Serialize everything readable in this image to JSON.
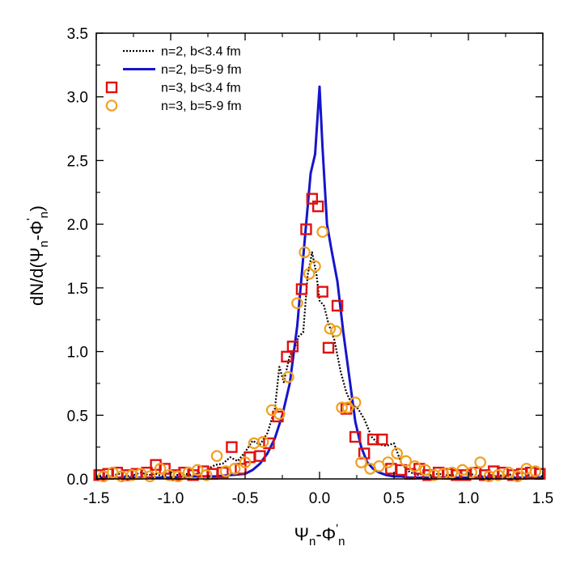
{
  "chart_data": {
    "type": "scatter",
    "xlabel": {
      "base": "Ψ",
      "sub1": "n",
      "mid": "-Φ",
      "sup": "'",
      "sub2": "n"
    },
    "ylabel": {
      "pre": "dN/d(Ψ",
      "sub1": "n",
      "mid": "-Φ",
      "sup": "'",
      "sub2": "n",
      "post": ")"
    },
    "xlim": [
      -1.5,
      1.5
    ],
    "ylim": [
      0.0,
      3.5
    ],
    "x_ticks": [
      "-1.5",
      "-1.0",
      "-0.5",
      "0.0",
      "0.5",
      "1.0",
      "1.5"
    ],
    "y_ticks": [
      "0.0",
      "0.5",
      "1.0",
      "1.5",
      "2.0",
      "2.5",
      "3.0",
      "3.5"
    ],
    "grid": false,
    "legend_position": "top-left",
    "series": [
      {
        "name": "n=2, b<3.4 fm",
        "style": "dotted-line",
        "color": "#000000",
        "x": [
          -1.5,
          -1.45,
          -1.4,
          -1.35,
          -1.3,
          -1.25,
          -1.2,
          -1.15,
          -1.1,
          -1.05,
          -1.0,
          -0.95,
          -0.9,
          -0.85,
          -0.8,
          -0.75,
          -0.7,
          -0.65,
          -0.6,
          -0.55,
          -0.5,
          -0.45,
          -0.4,
          -0.35,
          -0.3,
          -0.27,
          -0.24,
          -0.2,
          -0.17,
          -0.14,
          -0.11,
          -0.08,
          -0.05,
          -0.02,
          0.0,
          0.03,
          0.06,
          0.1,
          0.14,
          0.18,
          0.22,
          0.26,
          0.3,
          0.35,
          0.4,
          0.45,
          0.5,
          0.55,
          0.6,
          0.65,
          0.7,
          0.75,
          0.8,
          0.85,
          0.9,
          0.95,
          1.0,
          1.05,
          1.1,
          1.15,
          1.2,
          1.25,
          1.3,
          1.35,
          1.4,
          1.45,
          1.5
        ],
        "values": [
          0.02,
          0.03,
          0.02,
          0.04,
          0.02,
          0.03,
          0.05,
          0.03,
          0.04,
          0.02,
          0.05,
          0.03,
          0.04,
          0.03,
          0.05,
          0.08,
          0.11,
          0.12,
          0.17,
          0.14,
          0.21,
          0.3,
          0.27,
          0.36,
          0.55,
          0.88,
          0.76,
          0.97,
          1.02,
          1.12,
          1.15,
          1.6,
          1.78,
          1.6,
          1.4,
          1.36,
          1.22,
          1.09,
          0.85,
          0.68,
          0.58,
          0.55,
          0.47,
          0.33,
          0.27,
          0.26,
          0.28,
          0.12,
          0.06,
          0.03,
          0.04,
          0.03,
          0.04,
          0.03,
          0.03,
          0.03,
          0.04,
          0.03,
          0.02,
          0.03,
          0.02,
          0.04,
          0.03,
          0.05,
          0.03,
          0.03,
          0.02
        ]
      },
      {
        "name": "n=2, b=5-9 fm",
        "style": "solid-line",
        "color": "#1515cc",
        "x": [
          -1.5,
          -1.4,
          -1.3,
          -1.2,
          -1.1,
          -1.0,
          -0.9,
          -0.8,
          -0.7,
          -0.6,
          -0.5,
          -0.45,
          -0.4,
          -0.35,
          -0.3,
          -0.25,
          -0.2,
          -0.15,
          -0.12,
          -0.09,
          -0.06,
          -0.03,
          0.0,
          0.02,
          0.05,
          0.08,
          0.12,
          0.16,
          0.2,
          0.24,
          0.28,
          0.32,
          0.36,
          0.4,
          0.45,
          0.5,
          0.55,
          0.6,
          0.7,
          0.8,
          0.9,
          1.0,
          1.1,
          1.2,
          1.3,
          1.4,
          1.5
        ],
        "values": [
          0.01,
          0.01,
          0.01,
          0.01,
          0.01,
          0.01,
          0.02,
          0.02,
          0.02,
          0.03,
          0.04,
          0.07,
          0.12,
          0.2,
          0.32,
          0.5,
          0.75,
          1.2,
          1.6,
          2.0,
          2.4,
          2.55,
          3.08,
          2.6,
          2.0,
          1.8,
          1.55,
          1.15,
          0.8,
          0.45,
          0.25,
          0.13,
          0.08,
          0.05,
          0.03,
          0.02,
          0.02,
          0.01,
          0.01,
          0.01,
          0.01,
          0.01,
          0.01,
          0.01,
          0.01,
          0.01,
          0.01
        ]
      },
      {
        "name": "n=3, b<3.4 fm",
        "style": "open-square",
        "color": "#e01010",
        "x": [
          -1.48,
          -1.42,
          -1.36,
          -1.29,
          -1.23,
          -1.16,
          -1.1,
          -1.04,
          -0.97,
          -0.91,
          -0.85,
          -0.78,
          -0.72,
          -0.65,
          -0.59,
          -0.53,
          -0.47,
          -0.4,
          -0.34,
          -0.28,
          -0.22,
          -0.18,
          -0.12,
          -0.09,
          -0.05,
          -0.01,
          0.02,
          0.06,
          0.12,
          0.18,
          0.24,
          0.3,
          0.36,
          0.42,
          0.48,
          0.55,
          0.61,
          0.67,
          0.73,
          0.8,
          0.86,
          0.92,
          0.98,
          1.05,
          1.11,
          1.17,
          1.23,
          1.3,
          1.36,
          1.42,
          1.48
        ],
        "values": [
          0.03,
          0.04,
          0.05,
          0.03,
          0.04,
          0.05,
          0.11,
          0.08,
          0.03,
          0.05,
          0.03,
          0.06,
          0.04,
          0.05,
          0.25,
          0.08,
          0.17,
          0.18,
          0.28,
          0.49,
          0.96,
          1.04,
          1.49,
          1.96,
          2.2,
          2.14,
          1.47,
          1.03,
          1.36,
          0.55,
          0.33,
          0.2,
          0.31,
          0.31,
          0.08,
          0.07,
          0.04,
          0.08,
          0.03,
          0.05,
          0.04,
          0.03,
          0.03,
          0.05,
          0.03,
          0.06,
          0.05,
          0.03,
          0.04,
          0.05,
          0.04
        ]
      },
      {
        "name": "n=3, b=5-9 fm",
        "style": "open-circle",
        "color": "#f0a020",
        "x": [
          -1.45,
          -1.39,
          -1.33,
          -1.26,
          -1.2,
          -1.14,
          -1.07,
          -1.01,
          -0.95,
          -0.88,
          -0.82,
          -0.76,
          -0.69,
          -0.63,
          -0.57,
          -0.5,
          -0.44,
          -0.38,
          -0.32,
          -0.27,
          -0.21,
          -0.15,
          -0.1,
          -0.07,
          -0.03,
          0.02,
          0.07,
          0.11,
          0.15,
          0.19,
          0.24,
          0.28,
          0.34,
          0.4,
          0.46,
          0.52,
          0.58,
          0.64,
          0.71,
          0.77,
          0.83,
          0.89,
          0.96,
          1.02,
          1.08,
          1.14,
          1.2,
          1.27,
          1.33,
          1.39,
          1.45
        ],
        "values": [
          0.02,
          0.05,
          0.02,
          0.03,
          0.04,
          0.02,
          0.08,
          0.03,
          0.02,
          0.05,
          0.07,
          0.03,
          0.18,
          0.06,
          0.08,
          0.13,
          0.28,
          0.29,
          0.54,
          0.51,
          0.8,
          1.38,
          1.78,
          1.61,
          1.67,
          1.94,
          1.18,
          1.16,
          0.56,
          0.56,
          0.6,
          0.13,
          0.08,
          0.1,
          0.13,
          0.2,
          0.14,
          0.1,
          0.07,
          0.03,
          0.04,
          0.05,
          0.07,
          0.05,
          0.13,
          0.02,
          0.03,
          0.05,
          0.02,
          0.08,
          0.06
        ]
      }
    ]
  }
}
